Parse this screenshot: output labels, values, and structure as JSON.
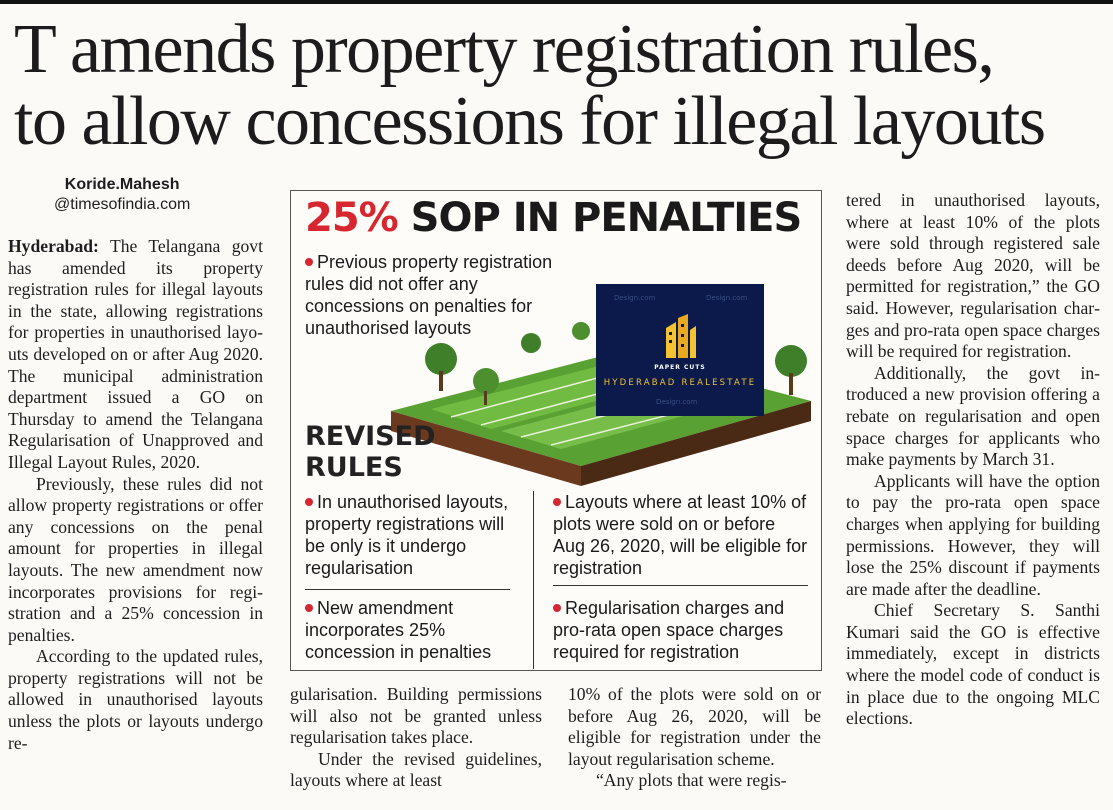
{
  "headline": {
    "line1": "T amends property registration rules,",
    "line2": "to allow concessions for illegal layouts"
  },
  "byline": {
    "author": "Koride.Mahesh",
    "email": "@timesofindia.com"
  },
  "article": {
    "dateline": "Hyderabad:",
    "col1": [
      "The Telangana govt has amended its proper­ty registration rules for ille­gal layouts in the state, allo­wing registrations for pro­perties in unauthorised layo­uts developed on or after Aug 2020. The municipal admini­stration department issued a GO on Thursday to amend the Telangana Regularisation of Unapproved and Illegal Layo­ut Rules, 2020.",
      "Previously, these rules did not allow property registra­tions or offer any concessions on the penal amount for pro­perties in illegal layouts. The new amendment now incor­porates provisions for regi­stration and a 25% conces­sion in penalties.",
      "According to the updated rules, property registrations will not be allowed in unaut­horised layouts unless the plots or layouts undergo re-"
    ],
    "col2": [
      "gularisation. Building per­missions will also not be granted unless regularisa­tion takes place.",
      "Under the revised guideli­nes, layouts where at least"
    ],
    "col3": [
      "10% of the plots were sold on or before Aug 26, 2020, will be eligible for registration un­der the layout regularisation scheme.",
      "“Any plots that were regis-"
    ],
    "col4": [
      "tered in unauthorised layo­uts, where at least 10% of the plots were sold through regis­tered sale deeds before Aug 2020, will be permitted for re­gistration,” the GO said. Ho­wever, regularisation char­ges and pro-rata open space charges will be required for registration.",
      "Additionally, the govt in­troduced a new provision of­fering a rebate on regularisa­tion and open space charges for applicants who make pay­ments by March 31.",
      "Applicants will have the option to pay the pro-rata open space charges when applying for building permis­sions. However, they will lose the 25% discount if payments are made after the deadline.",
      "Chief Secretary S. Santhi Kumari said the GO is effecti­ve immediately, except in dis­tricts where the model code of conduct is in place due to the ongoing MLC elections."
    ]
  },
  "infographic": {
    "title_pct": "25%",
    "title_rest": " SOP IN PENALTIES",
    "previous": "Previous property registration rules did not offer any concessions on penalties for unauthorised layouts",
    "revised_heading_1": "REVISED",
    "revised_heading_2": "RULES",
    "bullets": [
      "In unauthorised layouts, property registrations will be only is it undergo regularisation",
      "New amendment incorporates 25% concession in penalties",
      "Layouts where at least 10% of plots were sold on or before Aug 26, 2020, will be eligible for registration",
      "Regularisation charges and pro-rata open space charges required for registration"
    ],
    "accent_color": "#d7262f"
  },
  "watermark": {
    "small": "PAPER CUTS",
    "brand": "HYDERABAD REALESTATE",
    "faint": "Design.com"
  }
}
